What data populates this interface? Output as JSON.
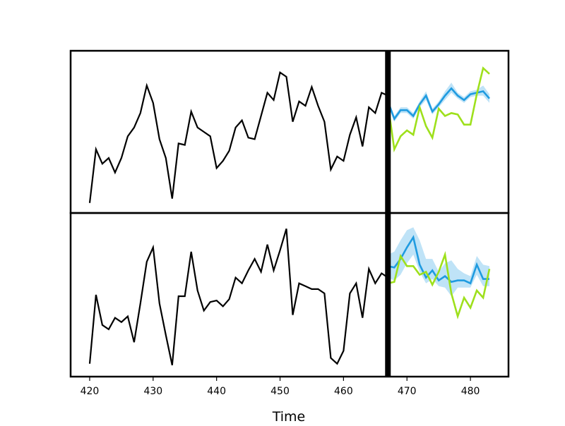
{
  "chart_data": {
    "type": "line",
    "xlabel": "Time",
    "xlim": [
      417,
      486
    ],
    "x_ticks": [
      420,
      430,
      440,
      450,
      460,
      470,
      480
    ],
    "forecast_start": 467,
    "colors": {
      "history": "#000000",
      "forecast": "#1f9be0",
      "forecast_band": "#bfe3f7",
      "actual": "#9ee01c",
      "divider": "#000000"
    },
    "panels": [
      {
        "ylim": [
          -0.03,
          1.05
        ],
        "history": {
          "x": [
            420,
            421,
            422,
            423,
            424,
            425,
            426,
            427,
            428,
            429,
            430,
            431,
            432,
            433,
            434,
            435,
            436,
            437,
            438,
            439,
            440,
            441,
            442,
            443,
            444,
            445,
            446,
            447,
            448,
            449,
            450,
            451,
            452,
            453,
            454,
            455,
            456,
            457,
            458,
            459,
            460,
            461,
            462,
            463,
            464,
            465,
            466,
            467
          ],
          "y": [
            0.02,
            0.39,
            0.29,
            0.33,
            0.23,
            0.33,
            0.48,
            0.54,
            0.64,
            0.83,
            0.71,
            0.46,
            0.33,
            0.05,
            0.43,
            0.42,
            0.65,
            0.54,
            0.51,
            0.48,
            0.26,
            0.31,
            0.38,
            0.54,
            0.59,
            0.47,
            0.46,
            0.62,
            0.78,
            0.73,
            0.92,
            0.89,
            0.58,
            0.72,
            0.69,
            0.82,
            0.69,
            0.58,
            0.25,
            0.34,
            0.31,
            0.49,
            0.61,
            0.41,
            0.68,
            0.64,
            0.78,
            0.76
          ]
        },
        "forecast": {
          "x": [
            467,
            468,
            469,
            470,
            471,
            472,
            473,
            474,
            475,
            476,
            477,
            478,
            479,
            480,
            481,
            482,
            483
          ],
          "mean": [
            0.72,
            0.6,
            0.66,
            0.66,
            0.62,
            0.7,
            0.76,
            0.65,
            0.7,
            0.76,
            0.81,
            0.76,
            0.73,
            0.77,
            0.78,
            0.79,
            0.74
          ],
          "lower": [
            0.7,
            0.58,
            0.64,
            0.64,
            0.6,
            0.68,
            0.73,
            0.63,
            0.68,
            0.73,
            0.78,
            0.74,
            0.71,
            0.75,
            0.76,
            0.76,
            0.71
          ],
          "upper": [
            0.74,
            0.62,
            0.68,
            0.68,
            0.64,
            0.72,
            0.79,
            0.67,
            0.72,
            0.79,
            0.85,
            0.78,
            0.75,
            0.79,
            0.8,
            0.83,
            0.77
          ]
        },
        "actual": {
          "x": [
            467,
            468,
            469,
            470,
            471,
            472,
            473,
            474,
            475,
            476,
            477,
            478,
            479,
            480,
            481,
            482,
            483
          ],
          "y": [
            0.7,
            0.39,
            0.48,
            0.52,
            0.49,
            0.68,
            0.55,
            0.47,
            0.67,
            0.62,
            0.64,
            0.63,
            0.56,
            0.56,
            0.77,
            0.95,
            0.91
          ]
        }
      },
      {
        "ylim": [
          -0.05,
          1.05
        ],
        "history": {
          "x": [
            420,
            421,
            422,
            423,
            424,
            425,
            426,
            427,
            428,
            429,
            430,
            431,
            432,
            433,
            434,
            435,
            436,
            437,
            438,
            439,
            440,
            441,
            442,
            443,
            444,
            445,
            446,
            447,
            448,
            449,
            450,
            451,
            452,
            453,
            454,
            455,
            456,
            457,
            458,
            459,
            460,
            461,
            462,
            463,
            464,
            465,
            466,
            467
          ],
          "y": [
            0.02,
            0.5,
            0.29,
            0.26,
            0.34,
            0.31,
            0.35,
            0.17,
            0.44,
            0.73,
            0.83,
            0.44,
            0.22,
            0.01,
            0.49,
            0.49,
            0.8,
            0.53,
            0.39,
            0.45,
            0.46,
            0.42,
            0.47,
            0.62,
            0.58,
            0.67,
            0.75,
            0.66,
            0.85,
            0.67,
            0.81,
            0.96,
            0.36,
            0.58,
            0.56,
            0.54,
            0.54,
            0.51,
            0.06,
            0.02,
            0.11,
            0.51,
            0.58,
            0.34,
            0.68,
            0.58,
            0.65,
            0.62
          ]
        },
        "forecast": {
          "x": [
            467,
            468,
            469,
            470,
            471,
            472,
            473,
            474,
            475,
            476,
            477,
            478,
            479,
            480,
            481,
            482,
            483
          ],
          "mean": [
            0.7,
            0.69,
            0.75,
            0.83,
            0.9,
            0.71,
            0.62,
            0.67,
            0.6,
            0.63,
            0.59,
            0.6,
            0.6,
            0.58,
            0.71,
            0.61,
            0.61
          ],
          "lower": [
            0.62,
            0.6,
            0.64,
            0.72,
            0.78,
            0.66,
            0.58,
            0.61,
            0.56,
            0.55,
            0.49,
            0.55,
            0.55,
            0.55,
            0.64,
            0.56,
            0.56
          ],
          "upper": [
            0.78,
            0.8,
            0.88,
            0.95,
            0.97,
            0.88,
            0.75,
            0.75,
            0.66,
            0.72,
            0.74,
            0.68,
            0.65,
            0.63,
            0.77,
            0.71,
            0.7
          ]
        },
        "actual": {
          "x": [
            467,
            468,
            469,
            470,
            471,
            472,
            473,
            474,
            475,
            476,
            477,
            478,
            479,
            480,
            481,
            482,
            483
          ],
          "y": [
            0.58,
            0.59,
            0.77,
            0.7,
            0.7,
            0.64,
            0.66,
            0.57,
            0.66,
            0.78,
            0.51,
            0.35,
            0.48,
            0.41,
            0.53,
            0.48,
            0.68
          ]
        }
      }
    ]
  }
}
